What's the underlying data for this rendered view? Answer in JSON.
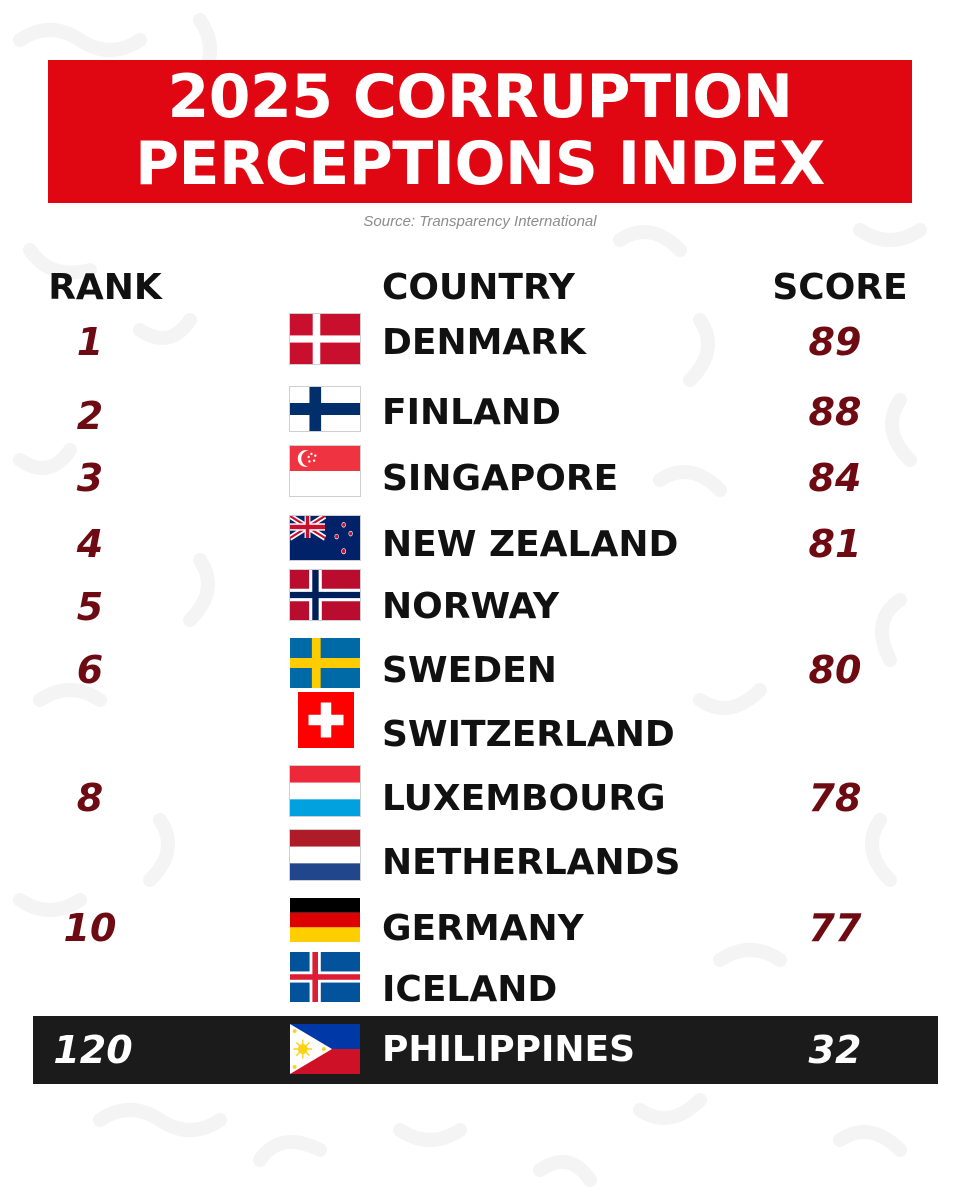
{
  "title": {
    "line1": "2025 CORRUPTION",
    "line2": "PERCEPTIONS INDEX"
  },
  "source": "Source: Transparency International",
  "headers": {
    "rank": "RANK",
    "country": "COUNTRY",
    "score": "SCORE"
  },
  "rows": [
    {
      "rank": "1",
      "country": "DENMARK",
      "score": "89",
      "flag": "denmark-flag-icon"
    },
    {
      "rank": "2",
      "country": "FINLAND",
      "score": "88",
      "flag": "finland-flag-icon"
    },
    {
      "rank": "3",
      "country": "SINGAPORE",
      "score": "84",
      "flag": "singapore-flag-icon"
    },
    {
      "rank": "4",
      "country": "NEW ZEALAND",
      "score": "81",
      "flag": "new-zealand-flag-icon"
    },
    {
      "rank": "5",
      "country": "NORWAY",
      "score": "",
      "flag": "norway-flag-icon"
    },
    {
      "rank": "6",
      "country": "SWEDEN",
      "score": "80",
      "flag": "sweden-flag-icon"
    },
    {
      "rank": "",
      "country": "SWITZERLAND",
      "score": "",
      "flag": "switzerland-flag-icon"
    },
    {
      "rank": "8",
      "country": "LUXEMBOURG",
      "score": "78",
      "flag": "luxembourg-flag-icon"
    },
    {
      "rank": "",
      "country": "NETHERLANDS",
      "score": "",
      "flag": "netherlands-flag-icon"
    },
    {
      "rank": "10",
      "country": "GERMANY",
      "score": "77",
      "flag": "germany-flag-icon"
    },
    {
      "rank": "",
      "country": "ICELAND",
      "score": "",
      "flag": "iceland-flag-icon"
    }
  ],
  "highlight": {
    "rank": "120",
    "country": "PHILIPPINES",
    "score": "32",
    "flag": "philippines-flag-icon"
  },
  "colors": {
    "title_bg": "#e00612",
    "rank_score_text": "#6e0a12",
    "highlight_bg": "#1b1b1b"
  }
}
